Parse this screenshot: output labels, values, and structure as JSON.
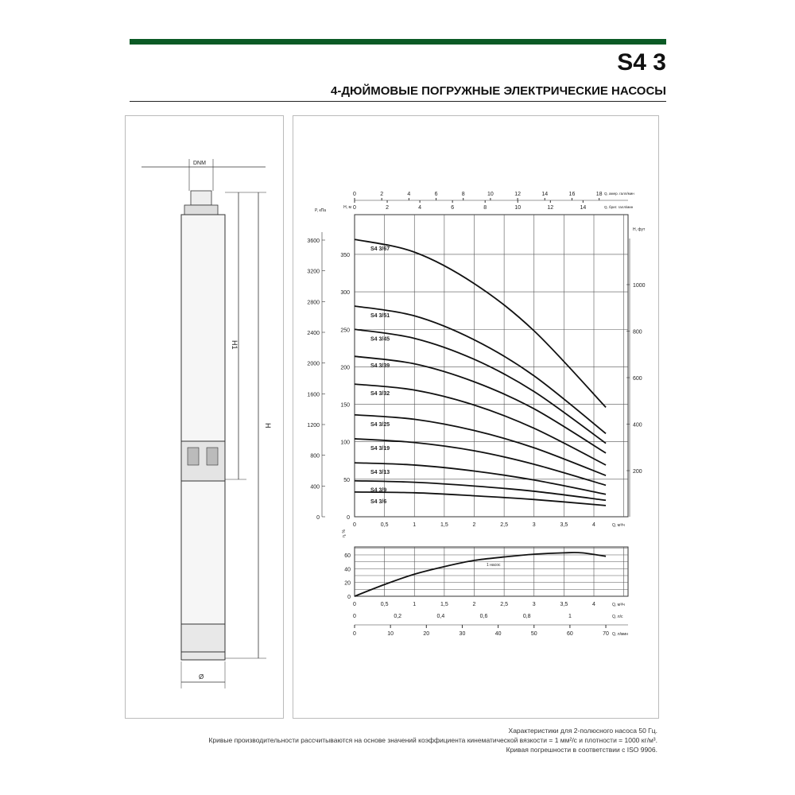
{
  "header": {
    "title": "S4 3",
    "subtitle": "4-ДЮЙМОВЫЕ ПОГРУЖНЫЕ ЭЛЕКТРИЧЕСКИЕ НАСОСЫ",
    "accent_color": "#0b5a25"
  },
  "drawing": {
    "dnm_label": "DNM",
    "h1_label": "H1",
    "h_label": "H",
    "diameter_label": "Ø"
  },
  "chart_data": [
    {
      "type": "line",
      "title": "",
      "xlabel": "Q, м³/ч",
      "ylabel": "H, м",
      "ylabel_left_outer": "P, кПа",
      "ylabel_right": "H, фут",
      "top_axis_1_label": "Q, амер. галл/мин",
      "top_axis_2_label": "Q, брит. галл/мин",
      "xlim": [
        0,
        4.57
      ],
      "ylim": [
        0,
        400
      ],
      "grid": true,
      "x_ticks": [
        "0",
        "0,5",
        "1",
        "1,5",
        "2",
        "2,5",
        "3",
        "3,5",
        "4"
      ],
      "y_ticks": [
        0,
        50,
        100,
        150,
        200,
        250,
        300,
        350
      ],
      "kpa_ticks": [
        0,
        400,
        800,
        1200,
        1600,
        2000,
        2400,
        2800,
        3200,
        3600
      ],
      "ft_ticks": [
        200,
        400,
        600,
        800,
        1000
      ],
      "us_gpm_ticks": [
        0,
        2,
        4,
        6,
        8,
        10,
        12,
        14,
        16,
        18
      ],
      "imp_gpm_ticks": [
        0,
        2,
        4,
        6,
        8,
        10,
        12,
        14
      ],
      "x": [
        0,
        1,
        2,
        3,
        4.2
      ],
      "series": [
        {
          "name": "S4 3/67",
          "values": [
            370,
            353,
            311,
            248,
            146
          ]
        },
        {
          "name": "S4 3/51",
          "values": [
            281,
            268,
            236,
            188,
            111
          ]
        },
        {
          "name": "S4 3/45",
          "values": [
            250,
            238,
            210,
            167,
            98
          ]
        },
        {
          "name": "S4 3/39",
          "values": [
            214,
            204,
            180,
            144,
            85
          ]
        },
        {
          "name": "S4 3/32",
          "values": [
            177,
            169,
            149,
            118,
            69
          ]
        },
        {
          "name": "S4 3/25",
          "values": [
            136,
            130,
            115,
            92,
            55
          ]
        },
        {
          "name": "S4 3/19",
          "values": [
            104,
            99,
            88,
            70,
            42
          ]
        },
        {
          "name": "S4 3/13",
          "values": [
            72,
            69,
            61,
            49,
            30
          ]
        },
        {
          "name": "S4 3/9",
          "values": [
            48,
            46,
            41,
            34,
            22
          ]
        },
        {
          "name": "S4 3/6",
          "values": [
            33,
            32,
            28,
            23,
            15
          ]
        }
      ]
    },
    {
      "type": "line",
      "title": "",
      "xlabel": "Q, м³/ч",
      "ylabel": "η, %",
      "bottom_axis_1_label": "Q, л/с",
      "bottom_axis_2_label": "Q, л/мин",
      "xlim": [
        0,
        4.57
      ],
      "ylim": [
        0,
        72
      ],
      "grid": true,
      "x_ticks": [
        "0",
        "0,5",
        "1",
        "1,5",
        "2",
        "2,5",
        "3",
        "3,5",
        "4"
      ],
      "y_ticks": [
        0,
        20,
        40,
        60
      ],
      "ls_ticks": [
        "0",
        "0,2",
        "0,4",
        "0,6",
        "0,8",
        "1"
      ],
      "lmin_ticks": [
        0,
        10,
        20,
        30,
        40,
        50,
        60,
        70
      ],
      "x": [
        0,
        0.5,
        1,
        1.5,
        2,
        2.5,
        3,
        3.5,
        3.8,
        4.2
      ],
      "series": [
        {
          "name": "1 насос",
          "values": [
            0,
            17,
            32,
            43,
            52,
            57,
            61,
            63,
            63,
            58
          ]
        }
      ]
    }
  ],
  "footnotes": [
    "Характеристики для 2-полюсного насоса 50 Гц.",
    "Кривые производительности рассчитываются на основе значений коэффициента кинематической вязкости = 1 мм²/с и плотности = 1000 кг/м³.",
    "Кривая погрешности в соответствии с ISO 9906."
  ]
}
